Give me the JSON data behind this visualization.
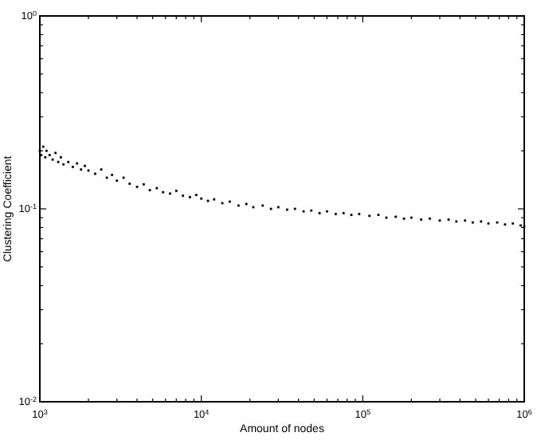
{
  "chart_data": {
    "type": "scatter",
    "xlabel": "Amount of nodes",
    "ylabel": "Clustering Coefficient",
    "log": "xy",
    "grid": false,
    "marker": "square",
    "xlim": [
      1000,
      1000000
    ],
    "ylim": [
      0.01,
      1
    ],
    "xticks": [
      {
        "value": 1000,
        "label": "10$^{3}$"
      },
      {
        "value": 2000,
        "label": null
      },
      {
        "value": 3000,
        "label": null
      },
      {
        "value": 4000,
        "label": null
      },
      {
        "value": 5000,
        "label": null
      },
      {
        "value": 6000,
        "label": null
      },
      {
        "value": 7000,
        "label": null
      },
      {
        "value": 8000,
        "label": null
      },
      {
        "value": 9000,
        "label": null
      },
      {
        "value": 10000,
        "label": "10$^{4}$"
      },
      {
        "value": 20000,
        "label": null
      },
      {
        "value": 30000,
        "label": null
      },
      {
        "value": 40000,
        "label": null
      },
      {
        "value": 50000,
        "label": null
      },
      {
        "value": 60000,
        "label": null
      },
      {
        "value": 70000,
        "label": null
      },
      {
        "value": 80000,
        "label": null
      },
      {
        "value": 90000,
        "label": null
      },
      {
        "value": 100000,
        "label": "10$^{5}$"
      },
      {
        "value": 200000,
        "label": null
      },
      {
        "value": 300000,
        "label": null
      },
      {
        "value": 400000,
        "label": null
      },
      {
        "value": 500000,
        "label": null
      },
      {
        "value": 600000,
        "label": null
      },
      {
        "value": 700000,
        "label": null
      },
      {
        "value": 800000,
        "label": null
      },
      {
        "value": 900000,
        "label": null
      },
      {
        "value": 1000000,
        "label": "10$^{6}$"
      }
    ],
    "yticks": [
      {
        "value": 0.01,
        "label": "10$^{-2}$"
      },
      {
        "value": 0.02,
        "label": null
      },
      {
        "value": 0.03,
        "label": null
      },
      {
        "value": 0.04,
        "label": null
      },
      {
        "value": 0.05,
        "label": null
      },
      {
        "value": 0.06,
        "label": null
      },
      {
        "value": 0.07,
        "label": null
      },
      {
        "value": 0.08,
        "label": null
      },
      {
        "value": 0.09,
        "label": null
      },
      {
        "value": 0.1,
        "label": "10$^{-1}$"
      },
      {
        "value": 0.2,
        "label": null
      },
      {
        "value": 0.3,
        "label": null
      },
      {
        "value": 0.4,
        "label": null
      },
      {
        "value": 0.5,
        "label": null
      },
      {
        "value": 0.6,
        "label": null
      },
      {
        "value": 0.7,
        "label": null
      },
      {
        "value": 0.8,
        "label": null
      },
      {
        "value": 0.9,
        "label": null
      },
      {
        "value": 1,
        "label": "10$^{0}$"
      }
    ],
    "series": [
      {
        "color": "#000000",
        "x": [
          1000,
          1020,
          1050,
          1080,
          1100,
          1150,
          1200,
          1250,
          1300,
          1350,
          1400,
          1500,
          1600,
          1700,
          1800,
          1900,
          2000,
          2200,
          2400,
          2600,
          2800,
          3000,
          3300,
          3600,
          4000,
          4400,
          4800,
          5300,
          5800,
          6400,
          7000,
          7700,
          8500,
          9300,
          10000,
          11000,
          12000,
          13500,
          15000,
          17000,
          19000,
          21000,
          24000,
          27000,
          30000,
          34000,
          38000,
          43000,
          48000,
          54000,
          60000,
          68000,
          76000,
          85000,
          95000,
          110000,
          125000,
          140000,
          160000,
          180000,
          200000,
          230000,
          260000,
          300000,
          340000,
          380000,
          430000,
          480000,
          540000,
          600000,
          680000,
          760000,
          850000,
          950000,
          1000000
        ],
        "values": [
          0.2,
          0.19,
          0.21,
          0.185,
          0.2,
          0.19,
          0.18,
          0.195,
          0.175,
          0.185,
          0.17,
          0.175,
          0.165,
          0.172,
          0.16,
          0.167,
          0.158,
          0.152,
          0.16,
          0.145,
          0.15,
          0.14,
          0.145,
          0.135,
          0.13,
          0.134,
          0.125,
          0.128,
          0.122,
          0.12,
          0.124,
          0.117,
          0.115,
          0.118,
          0.113,
          0.11,
          0.112,
          0.107,
          0.109,
          0.104,
          0.106,
          0.102,
          0.104,
          0.1,
          0.102,
          0.099,
          0.1,
          0.097,
          0.098,
          0.095,
          0.097,
          0.094,
          0.095,
          0.093,
          0.094,
          0.092,
          0.093,
          0.09,
          0.091,
          0.089,
          0.09,
          0.088,
          0.089,
          0.087,
          0.088,
          0.086,
          0.087,
          0.085,
          0.086,
          0.084,
          0.085,
          0.083,
          0.084,
          0.082,
          0.081
        ]
      }
    ]
  }
}
